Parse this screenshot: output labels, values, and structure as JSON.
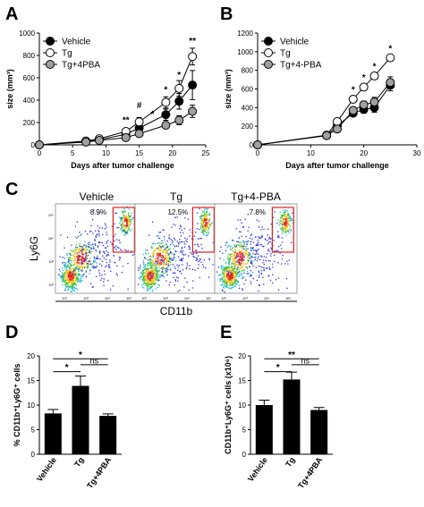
{
  "chart_data": [
    {
      "panel": "A",
      "type": "line",
      "xlabel": "Days after tumor challenge",
      "ylabel": "size (mm³)",
      "xlim": [
        0,
        25
      ],
      "ylim": [
        0,
        1000
      ],
      "xticks": [
        "0",
        "5",
        "10",
        "15",
        "20",
        "25"
      ],
      "yticks": [
        "0",
        "200",
        "400",
        "600",
        "800",
        "1000"
      ],
      "legend_position": "top-left",
      "series": [
        {
          "name": "Vehicle",
          "style": "filled-black",
          "x": [
            0,
            7,
            9,
            13,
            15,
            19,
            21,
            23
          ],
          "y": [
            0,
            30,
            45,
            95,
            150,
            270,
            390,
            535
          ],
          "err": [
            0,
            8,
            10,
            20,
            30,
            50,
            70,
            130
          ]
        },
        {
          "name": "Tg",
          "style": "open",
          "x": [
            0,
            7,
            9,
            13,
            15,
            19,
            21,
            23
          ],
          "y": [
            0,
            35,
            55,
            120,
            205,
            380,
            505,
            790
          ],
          "err": [
            0,
            8,
            12,
            25,
            40,
            50,
            70,
            75
          ]
        },
        {
          "name": "Tg+4PBA",
          "style": "filled-grey",
          "x": [
            0,
            7,
            9,
            13,
            15,
            19,
            21,
            23
          ],
          "y": [
            0,
            25,
            40,
            65,
            100,
            175,
            220,
            300
          ],
          "err": [
            0,
            6,
            10,
            15,
            20,
            30,
            40,
            55
          ]
        }
      ],
      "annotations": [
        {
          "x": 13,
          "y": 195,
          "text": "**"
        },
        {
          "x": 15,
          "y": 330,
          "text": "#"
        },
        {
          "x": 17,
          "y": 250,
          "text": "*"
        },
        {
          "x": 19,
          "y": 470,
          "text": "*"
        },
        {
          "x": 21,
          "y": 600,
          "text": "*"
        },
        {
          "x": 23,
          "y": 905,
          "text": "**"
        }
      ]
    },
    {
      "panel": "B",
      "type": "line",
      "xlabel": "Days after tumor challenge",
      "ylabel": "size (mm³)",
      "xlim": [
        0,
        30
      ],
      "ylim": [
        0,
        1200
      ],
      "xticks": [
        "0",
        "10",
        "20",
        "30"
      ],
      "yticks": [
        "0",
        "200",
        "400",
        "600",
        "800",
        "1000",
        "1200"
      ],
      "legend_position": "top-left",
      "series": [
        {
          "name": "Vehicle",
          "style": "filled-black",
          "x": [
            0,
            13,
            15,
            18,
            20,
            22,
            25
          ],
          "y": [
            0,
            100,
            205,
            340,
            380,
            400,
            640
          ],
          "err": [
            0,
            10,
            20,
            30,
            40,
            50,
            60
          ]
        },
        {
          "name": "Tg",
          "style": "open",
          "x": [
            0,
            13,
            15,
            18,
            20,
            22,
            25
          ],
          "y": [
            0,
            105,
            250,
            490,
            620,
            740,
            935
          ],
          "err": [
            0,
            10,
            20,
            30,
            30,
            30,
            30
          ]
        },
        {
          "name": "Tg+4-PBA",
          "style": "filled-grey",
          "x": [
            0,
            13,
            15,
            18,
            20,
            22,
            25
          ],
          "y": [
            0,
            100,
            170,
            370,
            430,
            460,
            670
          ],
          "err": [
            0,
            10,
            20,
            30,
            40,
            50,
            60
          ]
        }
      ],
      "annotations": [
        {
          "x": 18,
          "y": 560,
          "text": "*"
        },
        {
          "x": 20,
          "y": 690,
          "text": "*"
        },
        {
          "x": 22,
          "y": 810,
          "text": "*"
        },
        {
          "x": 25,
          "y": 1005,
          "text": "*"
        }
      ]
    },
    {
      "panel": "C",
      "type": "scatter",
      "xlabel": "CD11b",
      "ylabel": "Ly6G",
      "samples": [
        {
          "title": "Vehicle",
          "gate_percent": "8.9%"
        },
        {
          "title": "Tg",
          "gate_percent": "12.5%"
        },
        {
          "title": "Tg+4-PBA",
          "gate_percent": "7.8%"
        }
      ],
      "tick_labels": [
        "10²",
        "10³",
        "10⁴",
        "10⁵"
      ]
    },
    {
      "panel": "D",
      "type": "bar",
      "ylabel": "% CD11b⁺Ly6G⁺ cells",
      "categories": [
        "Vehicle",
        "Tg",
        "Tg+4PBA"
      ],
      "values": [
        8.3,
        13.9,
        7.8
      ],
      "errors": [
        0.8,
        2.0,
        0.4
      ],
      "ylim": [
        0,
        20
      ],
      "yticks": [
        "0",
        "5",
        "10",
        "15",
        "20"
      ],
      "comparisons": [
        {
          "from": 0,
          "to": 1,
          "label": "*"
        },
        {
          "from": 1,
          "to": 2,
          "label": "ns"
        },
        {
          "from": 0,
          "to": 2,
          "label": "*"
        }
      ]
    },
    {
      "panel": "E",
      "type": "bar",
      "ylabel": "CD11b⁺Ly6G⁺ cells (x10⁶)",
      "categories": [
        "Vehicle",
        "Tg",
        "Tg+4PBA"
      ],
      "values": [
        10.0,
        15.2,
        9.0
      ],
      "errors": [
        1.0,
        1.5,
        0.5
      ],
      "ylim": [
        0,
        20
      ],
      "yticks": [
        "0",
        "5",
        "10",
        "15",
        "20"
      ],
      "comparisons": [
        {
          "from": 0,
          "to": 1,
          "label": "*"
        },
        {
          "from": 1,
          "to": 2,
          "label": "ns"
        },
        {
          "from": 0,
          "to": 2,
          "label": "**"
        }
      ]
    }
  ]
}
